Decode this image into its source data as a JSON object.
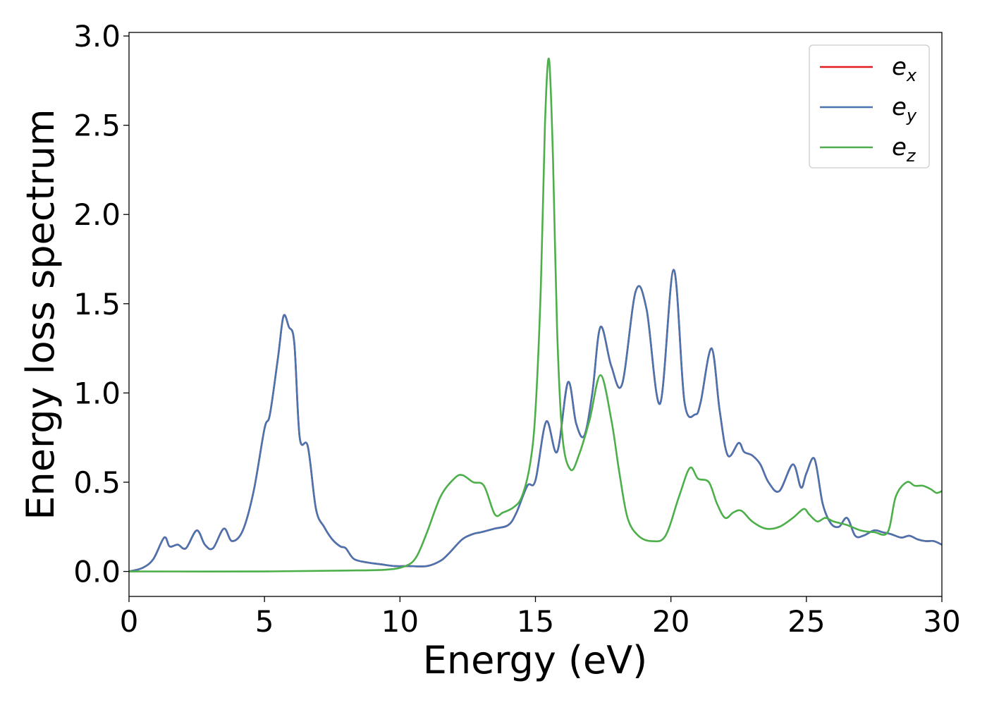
{
  "chart_data": {
    "type": "line",
    "xlabel": "Energy (eV)",
    "ylabel": "Energy loss spectrum",
    "xlim": [
      0,
      30
    ],
    "ylim": [
      -0.14,
      3.02
    ],
    "xticks": [
      0,
      5,
      10,
      15,
      20,
      25,
      30
    ],
    "xtick_labels": [
      "0",
      "5",
      "10",
      "15",
      "20",
      "25",
      "30"
    ],
    "yticks": [
      0.0,
      0.5,
      1.0,
      1.5,
      2.0,
      2.5,
      3.0
    ],
    "ytick_labels": [
      "0.0",
      "0.5",
      "1.0",
      "1.5",
      "2.0",
      "2.5",
      "3.0"
    ],
    "grid": false,
    "legend_position": "top-right",
    "series": [
      {
        "name": "e_x",
        "legend_main": "e",
        "legend_sub": "x",
        "color": "#e41a1c",
        "x": [
          0,
          0.5,
          0.9,
          1.3,
          1.5,
          1.8,
          2.1,
          2.5,
          2.8,
          3.1,
          3.5,
          3.8,
          4.2,
          4.6,
          5.0,
          5.2,
          5.5,
          5.7,
          5.9,
          6.1,
          6.3,
          6.6,
          6.9,
          7.2,
          7.5,
          7.8,
          8.0,
          8.3,
          8.8,
          9.3,
          9.8,
          10.3,
          11.0,
          11.5,
          11.8,
          12.3,
          12.7,
          13.0,
          13.5,
          14.0,
          14.3,
          14.7,
          15.0,
          15.4,
          15.8,
          16.2,
          16.5,
          16.8,
          17.1,
          17.4,
          17.8,
          18.2,
          18.7,
          19.1,
          19.6,
          20.1,
          20.5,
          20.9,
          21.1,
          21.5,
          21.8,
          22.1,
          22.5,
          22.7,
          23.0,
          23.3,
          23.6,
          24.0,
          24.5,
          24.8,
          25.0,
          25.3,
          25.6,
          25.9,
          26.2,
          26.5,
          26.8,
          27.1,
          27.5,
          27.8,
          28.1,
          28.5,
          28.8,
          29.1,
          29.4,
          29.7,
          30.0
        ],
        "y": [
          0.0,
          0.02,
          0.07,
          0.19,
          0.14,
          0.15,
          0.13,
          0.23,
          0.15,
          0.13,
          0.24,
          0.17,
          0.23,
          0.45,
          0.8,
          0.88,
          1.2,
          1.43,
          1.37,
          1.28,
          0.75,
          0.7,
          0.35,
          0.25,
          0.18,
          0.14,
          0.13,
          0.07,
          0.05,
          0.04,
          0.03,
          0.03,
          0.03,
          0.06,
          0.1,
          0.18,
          0.21,
          0.22,
          0.24,
          0.26,
          0.33,
          0.48,
          0.51,
          0.84,
          0.67,
          1.06,
          0.83,
          0.76,
          1.0,
          1.37,
          1.15,
          1.05,
          1.57,
          1.47,
          0.94,
          1.69,
          0.95,
          0.88,
          0.95,
          1.25,
          0.9,
          0.65,
          0.72,
          0.67,
          0.65,
          0.6,
          0.5,
          0.45,
          0.6,
          0.47,
          0.55,
          0.63,
          0.38,
          0.27,
          0.25,
          0.3,
          0.2,
          0.2,
          0.23,
          0.22,
          0.21,
          0.19,
          0.2,
          0.18,
          0.17,
          0.17,
          0.15
        ]
      },
      {
        "name": "e_y",
        "legend_main": "e",
        "legend_sub": "y",
        "color": "#4a74b0",
        "x": [
          0,
          0.5,
          0.9,
          1.3,
          1.5,
          1.8,
          2.1,
          2.5,
          2.8,
          3.1,
          3.5,
          3.8,
          4.2,
          4.6,
          5.0,
          5.2,
          5.5,
          5.7,
          5.9,
          6.1,
          6.3,
          6.6,
          6.9,
          7.2,
          7.5,
          7.8,
          8.0,
          8.3,
          8.8,
          9.3,
          9.8,
          10.3,
          11.0,
          11.5,
          11.8,
          12.3,
          12.7,
          13.0,
          13.5,
          14.0,
          14.3,
          14.7,
          15.0,
          15.4,
          15.8,
          16.2,
          16.5,
          16.8,
          17.1,
          17.4,
          17.8,
          18.2,
          18.7,
          19.1,
          19.6,
          20.1,
          20.5,
          20.9,
          21.1,
          21.5,
          21.8,
          22.1,
          22.5,
          22.7,
          23.0,
          23.3,
          23.6,
          24.0,
          24.5,
          24.8,
          25.0,
          25.3,
          25.6,
          25.9,
          26.2,
          26.5,
          26.8,
          27.1,
          27.5,
          27.8,
          28.1,
          28.5,
          28.8,
          29.1,
          29.4,
          29.7,
          30.0
        ],
        "y": [
          0.0,
          0.02,
          0.07,
          0.19,
          0.14,
          0.15,
          0.13,
          0.23,
          0.15,
          0.13,
          0.24,
          0.17,
          0.23,
          0.45,
          0.8,
          0.88,
          1.2,
          1.43,
          1.37,
          1.28,
          0.75,
          0.7,
          0.35,
          0.25,
          0.18,
          0.14,
          0.13,
          0.07,
          0.05,
          0.04,
          0.03,
          0.03,
          0.03,
          0.06,
          0.1,
          0.18,
          0.21,
          0.22,
          0.24,
          0.26,
          0.33,
          0.48,
          0.51,
          0.84,
          0.67,
          1.06,
          0.83,
          0.76,
          1.0,
          1.37,
          1.15,
          1.05,
          1.57,
          1.47,
          0.94,
          1.69,
          0.95,
          0.88,
          0.95,
          1.25,
          0.9,
          0.65,
          0.72,
          0.67,
          0.65,
          0.6,
          0.5,
          0.45,
          0.6,
          0.47,
          0.55,
          0.63,
          0.38,
          0.27,
          0.25,
          0.3,
          0.2,
          0.2,
          0.23,
          0.22,
          0.21,
          0.19,
          0.2,
          0.18,
          0.17,
          0.17,
          0.15
        ]
      },
      {
        "name": "e_z",
        "legend_main": "e",
        "legend_sub": "z",
        "color": "#4daf4a",
        "x": [
          0,
          5,
          8,
          9.5,
          10.2,
          10.6,
          11.0,
          11.5,
          12.0,
          12.3,
          12.7,
          13.1,
          13.5,
          13.8,
          14.2,
          14.5,
          14.8,
          15.0,
          15.2,
          15.35,
          15.5,
          15.65,
          15.8,
          16.0,
          16.3,
          16.6,
          17.0,
          17.4,
          17.8,
          18.1,
          18.4,
          18.8,
          19.3,
          19.8,
          20.3,
          20.7,
          21.0,
          21.4,
          21.7,
          22.0,
          22.3,
          22.6,
          23.0,
          23.5,
          24.0,
          24.5,
          24.9,
          25.1,
          25.4,
          25.7,
          26.0,
          26.5,
          27.0,
          27.5,
          28.0,
          28.3,
          28.7,
          29.0,
          29.3,
          29.6,
          29.8,
          30.0
        ],
        "y": [
          0.0,
          0.0,
          0.005,
          0.01,
          0.03,
          0.08,
          0.22,
          0.42,
          0.52,
          0.54,
          0.5,
          0.48,
          0.32,
          0.33,
          0.36,
          0.42,
          0.6,
          0.9,
          1.6,
          2.5,
          2.87,
          2.3,
          1.35,
          0.75,
          0.57,
          0.65,
          0.85,
          1.1,
          0.85,
          0.55,
          0.3,
          0.2,
          0.17,
          0.2,
          0.42,
          0.58,
          0.52,
          0.5,
          0.38,
          0.3,
          0.33,
          0.34,
          0.28,
          0.24,
          0.25,
          0.3,
          0.35,
          0.32,
          0.28,
          0.3,
          0.28,
          0.26,
          0.23,
          0.22,
          0.22,
          0.42,
          0.5,
          0.48,
          0.48,
          0.46,
          0.44,
          0.45
        ]
      }
    ]
  }
}
